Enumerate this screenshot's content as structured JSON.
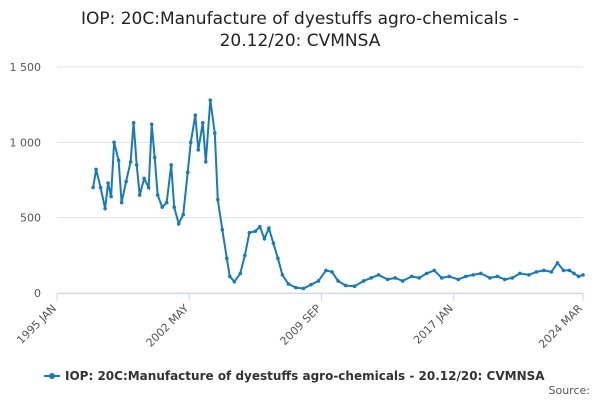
{
  "chart_data": {
    "type": "line",
    "title": "IOP: 20C:Manufacture of dyestuffs agro-chemicals - 20.12/20: CVMNSA",
    "source_label": "Source:",
    "x": [
      "1997-01",
      "1997-03",
      "1997-06",
      "1997-09",
      "1997-11",
      "1998-01",
      "1998-03",
      "1998-06",
      "1998-08",
      "1998-11",
      "1999-02",
      "1999-04",
      "1999-06",
      "1999-08",
      "1999-11",
      "2000-02",
      "2000-04",
      "2000-06",
      "2000-08",
      "2000-11",
      "2001-02",
      "2001-05",
      "2001-07",
      "2001-10",
      "2002-01",
      "2002-04",
      "2002-06",
      "2002-09",
      "2002-11",
      "2003-02",
      "2003-04",
      "2003-07",
      "2003-10",
      "2003-12",
      "2004-03",
      "2004-06",
      "2004-08",
      "2004-11",
      "2005-03",
      "2005-06",
      "2005-09",
      "2006-01",
      "2006-04",
      "2006-07",
      "2006-10",
      "2007-01",
      "2007-04",
      "2007-07",
      "2007-11",
      "2008-04",
      "2008-09",
      "2009-02",
      "2009-07",
      "2009-12",
      "2010-04",
      "2010-08",
      "2011-01",
      "2011-07",
      "2012-01",
      "2012-06",
      "2012-11",
      "2013-05",
      "2013-10",
      "2014-03",
      "2014-09",
      "2015-02",
      "2015-07",
      "2015-12",
      "2016-05",
      "2016-10",
      "2017-04",
      "2017-09",
      "2018-02",
      "2018-07",
      "2019-01",
      "2019-06",
      "2019-11",
      "2020-04",
      "2020-09",
      "2021-03",
      "2021-08",
      "2022-01",
      "2022-06",
      "2022-10",
      "2023-02",
      "2023-06",
      "2023-09",
      "2023-12",
      "2024-03"
    ],
    "series": [
      {
        "name": "IOP: 20C:Manufacture of dyestuffs agro-chemicals - 20.12/20: CVMNSA",
        "color": "#1a7ab8",
        "values": [
          700,
          820,
          700,
          560,
          730,
          640,
          1000,
          880,
          600,
          740,
          870,
          1130,
          850,
          650,
          760,
          700,
          1120,
          900,
          650,
          570,
          600,
          850,
          570,
          460,
          520,
          800,
          1000,
          1180,
          950,
          1130,
          870,
          1280,
          1060,
          620,
          420,
          230,
          110,
          75,
          130,
          250,
          400,
          410,
          440,
          360,
          430,
          330,
          230,
          120,
          60,
          35,
          30,
          55,
          80,
          150,
          140,
          80,
          50,
          45,
          80,
          100,
          120,
          90,
          100,
          80,
          110,
          100,
          130,
          150,
          100,
          110,
          90,
          110,
          120,
          130,
          100,
          110,
          90,
          100,
          130,
          120,
          140,
          150,
          140,
          200,
          150,
          150,
          130,
          110,
          120
        ]
      }
    ],
    "xlim": [
      "1995-01",
      "2024-03"
    ],
    "xticks": [
      {
        "value": "1995-01",
        "label": "1995 JAN"
      },
      {
        "value": "2002-05",
        "label": "2002 MAY"
      },
      {
        "value": "2009-09",
        "label": "2009 SEP"
      },
      {
        "value": "2017-01",
        "label": "2017 JAN"
      },
      {
        "value": "2024-03",
        "label": "2024 MAR"
      }
    ],
    "ylim": [
      0,
      1500
    ],
    "yticks": [
      0,
      500,
      {
        "value": 1000,
        "label": "1 000"
      },
      {
        "value": 1500,
        "label": "1 500"
      }
    ],
    "grid": true
  }
}
